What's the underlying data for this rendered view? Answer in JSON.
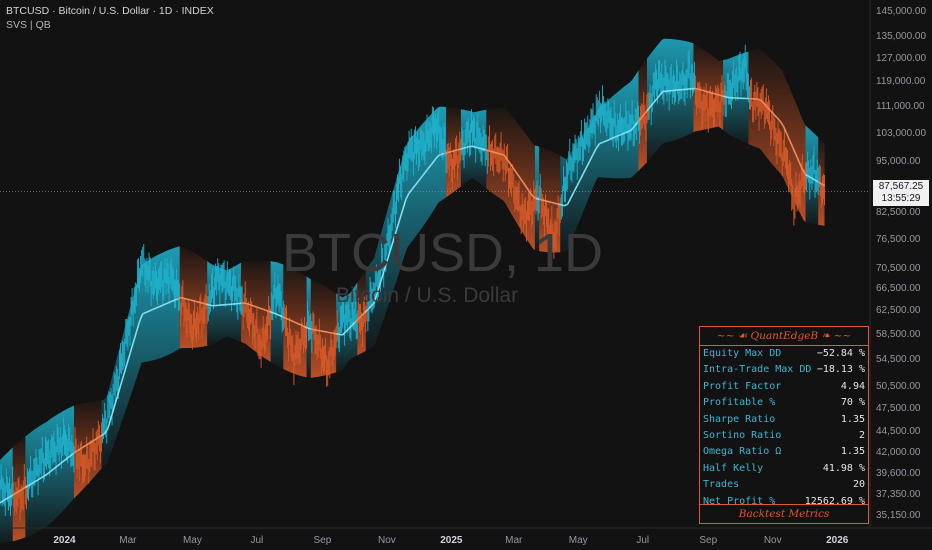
{
  "header": {
    "symbol_line": "BTCUSD · Bitcoin / U.S. Dollar · 1D · INDEX",
    "indicator_line": "SVS | QB"
  },
  "watermark": {
    "symbol": "BTCUSD, 1D",
    "name": "Bitcoin / U.S. Dollar"
  },
  "colors": {
    "bull": "#1fb3cf",
    "bear": "#d85a2a",
    "accent": "#e0582b",
    "background": "#121212"
  },
  "price_tag": {
    "price": "87,567.25",
    "countdown": "13:55:29"
  },
  "metrics_table": {
    "title": "~~ ☙ QuantEdgeB ❧ ~~",
    "footer": "Backtest Metrics",
    "rows": [
      {
        "label": "Equity Max DD",
        "value": "−52.84 %"
      },
      {
        "label": "Intra-Trade Max DD",
        "value": "−18.13 %"
      },
      {
        "label": "Profit Factor",
        "value": "4.94"
      },
      {
        "label": "Profitable %",
        "value": "70 %"
      },
      {
        "label": "Sharpe Ratio",
        "value": "1.35"
      },
      {
        "label": "Sortino Ratio",
        "value": "2"
      },
      {
        "label": "Omega Ratio Ω",
        "value": "1.35"
      },
      {
        "label": "Half Kelly",
        "value": "41.98 %"
      },
      {
        "label": "Trades",
        "value": "20"
      },
      {
        "label": "Net Profit %",
        "value": "12562.69 %"
      }
    ]
  },
  "chart_data": {
    "type": "line",
    "title": "BTCUSD · Bitcoin / U.S. Dollar · 1D · INDEX",
    "y_scale": "log",
    "y_ticks": [
      145000,
      135000,
      127000,
      119000,
      111000,
      103000,
      95000,
      82500,
      76500,
      70500,
      66500,
      62500,
      58500,
      54500,
      50500,
      47500,
      44500,
      42000,
      39600,
      37350,
      35150
    ],
    "y_tick_labels": [
      "145,000.00",
      "135,000.00",
      "127,000.00",
      "119,000.00",
      "111,000.00",
      "103,000.00",
      "95,000.00",
      "82,500.00",
      "76,500.00",
      "70,500.00",
      "66,500.00",
      "62,500.00",
      "58,500.00",
      "54,500.00",
      "50,500.00",
      "47,500.00",
      "44,500.00",
      "42,000.00",
      "39,600.00",
      "37,350.00",
      "35,150.00"
    ],
    "x_ticks": [
      "2024-01-01",
      "2024-03-01",
      "2024-05-01",
      "2024-07-01",
      "2024-09-01",
      "2024-11-01",
      "2025-01-01",
      "2025-03-01",
      "2025-05-01",
      "2025-07-01",
      "2025-09-01",
      "2025-11-01",
      "2026-01-01"
    ],
    "x_tick_labels": [
      "2024",
      "Mar",
      "May",
      "Jul",
      "Sep",
      "Nov",
      "2025",
      "Mar",
      "May",
      "Jul",
      "Sep",
      "Nov",
      "2026"
    ],
    "x_tick_bold": [
      true,
      false,
      false,
      false,
      false,
      false,
      true,
      false,
      false,
      false,
      false,
      false,
      true
    ],
    "xlim": [
      "2023-11-01",
      "2026-02-01"
    ],
    "ylim": [
      34000,
      150000
    ],
    "last_price": 87567.25,
    "series": [
      {
        "name": "BTCUSD",
        "dates": [
          "2023-11-01",
          "2023-11-20",
          "2023-12-10",
          "2024-01-01",
          "2024-01-20",
          "2024-02-05",
          "2024-02-20",
          "2024-03-05",
          "2024-03-14",
          "2024-03-25",
          "2024-04-10",
          "2024-04-20",
          "2024-05-01",
          "2024-05-15",
          "2024-05-25",
          "2024-06-10",
          "2024-06-25",
          "2024-07-05",
          "2024-07-20",
          "2024-08-05",
          "2024-08-20",
          "2024-09-06",
          "2024-09-20",
          "2024-10-10",
          "2024-10-29",
          "2024-11-12",
          "2024-11-22",
          "2024-12-05",
          "2024-12-17",
          "2025-01-01",
          "2025-01-20",
          "2025-02-05",
          "2025-02-20",
          "2025-03-10",
          "2025-03-25",
          "2025-04-08",
          "2025-04-22",
          "2025-05-10",
          "2025-05-22",
          "2025-06-05",
          "2025-06-22",
          "2025-07-05",
          "2025-07-14",
          "2025-07-28",
          "2025-08-10",
          "2025-08-14",
          "2025-08-25",
          "2025-09-05",
          "2025-09-20",
          "2025-10-06",
          "2025-10-11",
          "2025-10-25",
          "2025-11-05",
          "2025-11-15",
          "2025-11-21",
          "2025-11-30",
          "2025-12-10",
          "2025-12-20"
        ],
        "values": [
          38000,
          37000,
          41000,
          43500,
          40500,
          44000,
          51500,
          62500,
          72000,
          67500,
          69000,
          64500,
          59500,
          63500,
          69000,
          66500,
          61500,
          56500,
          66500,
          55000,
          60500,
          53500,
          61500,
          61000,
          71500,
          89000,
          98500,
          99500,
          106000,
          94000,
          104000,
          98000,
          96000,
          81500,
          86500,
          76500,
          94000,
          103000,
          111000,
          104500,
          105500,
          109000,
          120000,
          118000,
          118500,
          123000,
          112000,
          111000,
          115500,
          124500,
          113000,
          111500,
          101500,
          95000,
          84500,
          91500,
          92500,
          87567
        ]
      },
      {
        "name": "SVS",
        "dates": [
          "2023-11-01",
          "2023-12-15",
          "2024-01-10",
          "2024-02-10",
          "2024-03-14",
          "2024-04-20",
          "2024-05-20",
          "2024-06-20",
          "2024-07-20",
          "2024-08-20",
          "2024-09-20",
          "2024-10-20",
          "2024-11-20",
          "2024-12-20",
          "2025-01-20",
          "2025-02-20",
          "2025-03-20",
          "2025-04-20",
          "2025-05-20",
          "2025-06-20",
          "2025-07-20",
          "2025-08-20",
          "2025-09-20",
          "2025-10-20",
          "2025-11-10",
          "2025-12-01",
          "2025-12-20"
        ],
        "values": [
          36500,
          39500,
          42000,
          44500,
          62000,
          65000,
          63500,
          64000,
          62000,
          59500,
          58500,
          64000,
          86500,
          97000,
          99500,
          97000,
          86000,
          84000,
          100000,
          104000,
          116000,
          117000,
          114000,
          113500,
          106000,
          92000,
          89000
        ]
      }
    ]
  }
}
